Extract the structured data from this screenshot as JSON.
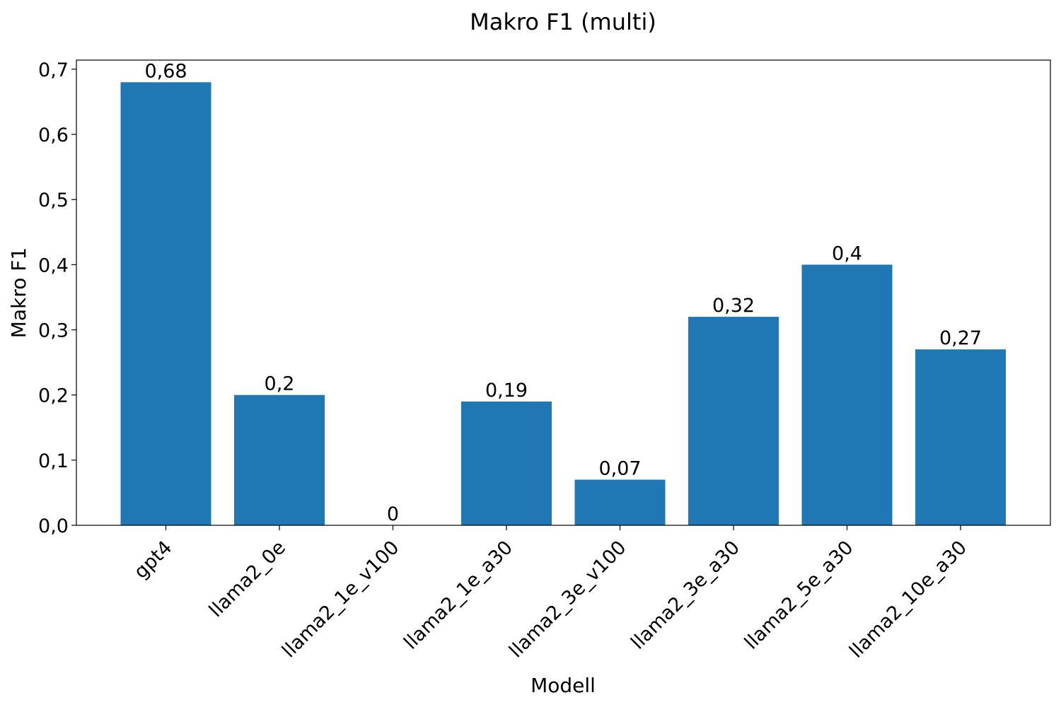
{
  "chart_data": {
    "type": "bar",
    "title": "Makro F1 (multi)",
    "xlabel": "Modell",
    "ylabel": "Makro F1",
    "categories": [
      "gpt4",
      "llama2_0e",
      "llama2_1e_v100",
      "llama2_1e_a30",
      "llama2_3e_v100",
      "llama2_3e_a30",
      "llama2_5e_a30",
      "llama2_10e_a30"
    ],
    "values": [
      0.68,
      0.2,
      0,
      0.19,
      0.07,
      0.32,
      0.4,
      0.27
    ],
    "data_labels": [
      "0,68",
      "0,2",
      "0",
      "0,19",
      "0,07",
      "0,32",
      "0,4",
      "0,27"
    ],
    "ylim": [
      0,
      0.714
    ],
    "yticks": [
      0,
      0.1,
      0.2,
      0.3,
      0.4,
      0.5,
      0.6,
      0.7
    ],
    "ytick_labels": [
      "0,0",
      "0,1",
      "0,2",
      "0,3",
      "0,4",
      "0,5",
      "0,6",
      "0,7"
    ],
    "bar_color": "#1f77b4",
    "grid": false,
    "legend": "none"
  }
}
